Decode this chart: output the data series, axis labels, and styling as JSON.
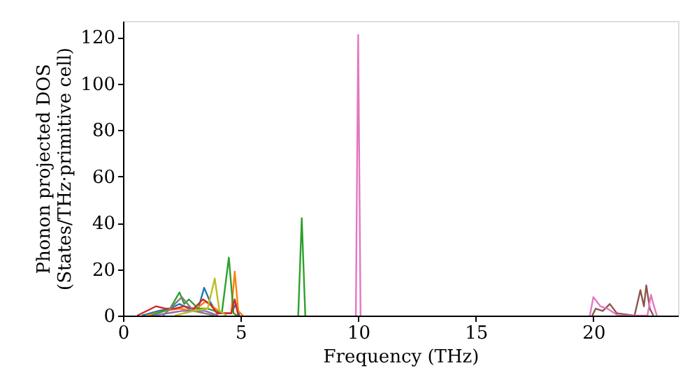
{
  "chart_data": {
    "type": "line",
    "xlabel": "Frequency (THz)",
    "ylabel": "Phonon projected DOS\n(States/THz·primitive cell)",
    "xlim": [
      0,
      23.6
    ],
    "ylim": [
      0,
      127
    ],
    "xticks": [
      0,
      5,
      10,
      15,
      20
    ],
    "yticks": [
      0,
      20,
      40,
      60,
      80,
      100,
      120
    ],
    "grid": false,
    "marker": "none",
    "line_style": "solid",
    "series": [
      {
        "color": "#1f77b4",
        "x": [
          0.8,
          1.5,
          2.0,
          2.4,
          2.8,
          3.2,
          3.45,
          3.7,
          4.0,
          4.6,
          4.8,
          4.95
        ],
        "values": [
          0,
          2,
          3,
          5,
          3,
          3,
          12,
          6,
          1,
          1,
          5,
          0
        ]
      },
      {
        "color": "#ff7f0e",
        "x": [
          1.0,
          1.8,
          2.4,
          3.0,
          3.5,
          3.8,
          4.2,
          4.6,
          4.75,
          4.9,
          5.1
        ],
        "values": [
          0,
          2,
          3,
          2,
          6,
          4,
          1,
          1,
          19,
          2,
          0
        ]
      },
      {
        "color": "#2ca02c",
        "x": [
          1.2,
          2.0,
          2.4,
          2.6,
          2.8,
          3.2,
          3.6,
          4.2,
          4.5,
          4.7,
          4.85,
          6,
          7.45,
          7.6,
          7.75
        ],
        "values": [
          0,
          3,
          10,
          5,
          7,
          3,
          3,
          1,
          25,
          1,
          0,
          null,
          0,
          42,
          0
        ]
      },
      {
        "color": "#d62728",
        "x": [
          0.6,
          1.4,
          1.8,
          2.2,
          2.6,
          3.0,
          3.4,
          3.7,
          4.0,
          4.6,
          4.75,
          4.9
        ],
        "values": [
          0,
          4,
          3,
          3,
          4,
          3,
          7,
          5,
          1,
          1,
          7,
          0
        ]
      },
      {
        "color": "#9467bd",
        "x": [
          1.3,
          2.5,
          3.5,
          4.05
        ],
        "values": [
          0,
          2,
          2,
          0
        ]
      },
      {
        "color": "#7f7f7f",
        "x": [
          1.7,
          2.5,
          3,
          3.9
        ],
        "values": [
          0,
          8,
          2,
          0
        ]
      },
      {
        "color": "#bcbd22",
        "x": [
          2.2,
          3,
          3.6,
          3.9,
          4.1,
          4.4
        ],
        "values": [
          0,
          2,
          3,
          16,
          2,
          0
        ]
      },
      {
        "color": "#8c564b",
        "x": [
          19.95,
          20.1,
          20.4,
          20.7,
          21.0,
          21.75,
          22.0,
          22.15,
          22.25,
          22.4,
          22.55
        ],
        "values": [
          0,
          3,
          2,
          5,
          1,
          0,
          11,
          4,
          13,
          3,
          0
        ]
      },
      {
        "color": "#e377c2",
        "x": [
          9.9,
          10.0,
          10.1,
          15,
          19.85,
          20.0,
          20.3,
          20.6,
          21.05,
          22.3,
          22.45,
          22.55,
          22.7
        ],
        "values": [
          0,
          121,
          0,
          null,
          0,
          8,
          4,
          3,
          0,
          0,
          9,
          5,
          0
        ]
      }
    ]
  }
}
